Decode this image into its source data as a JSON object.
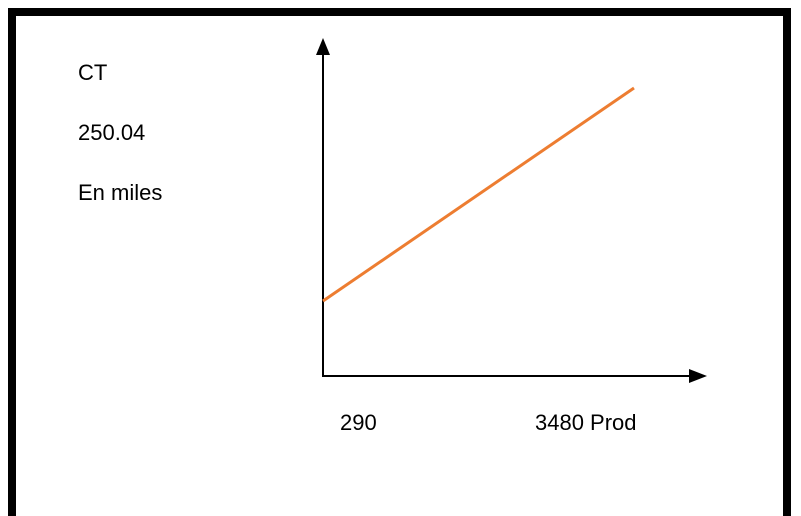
{
  "diagram": {
    "y_axis_label": "CT",
    "y_value": "250.04",
    "y_unit": "En miles",
    "x_start_label": "290",
    "x_end_label": "3480 Prod",
    "line_color": "#ED7D31",
    "axis_color": "#000000",
    "frame_color": "#000000"
  }
}
